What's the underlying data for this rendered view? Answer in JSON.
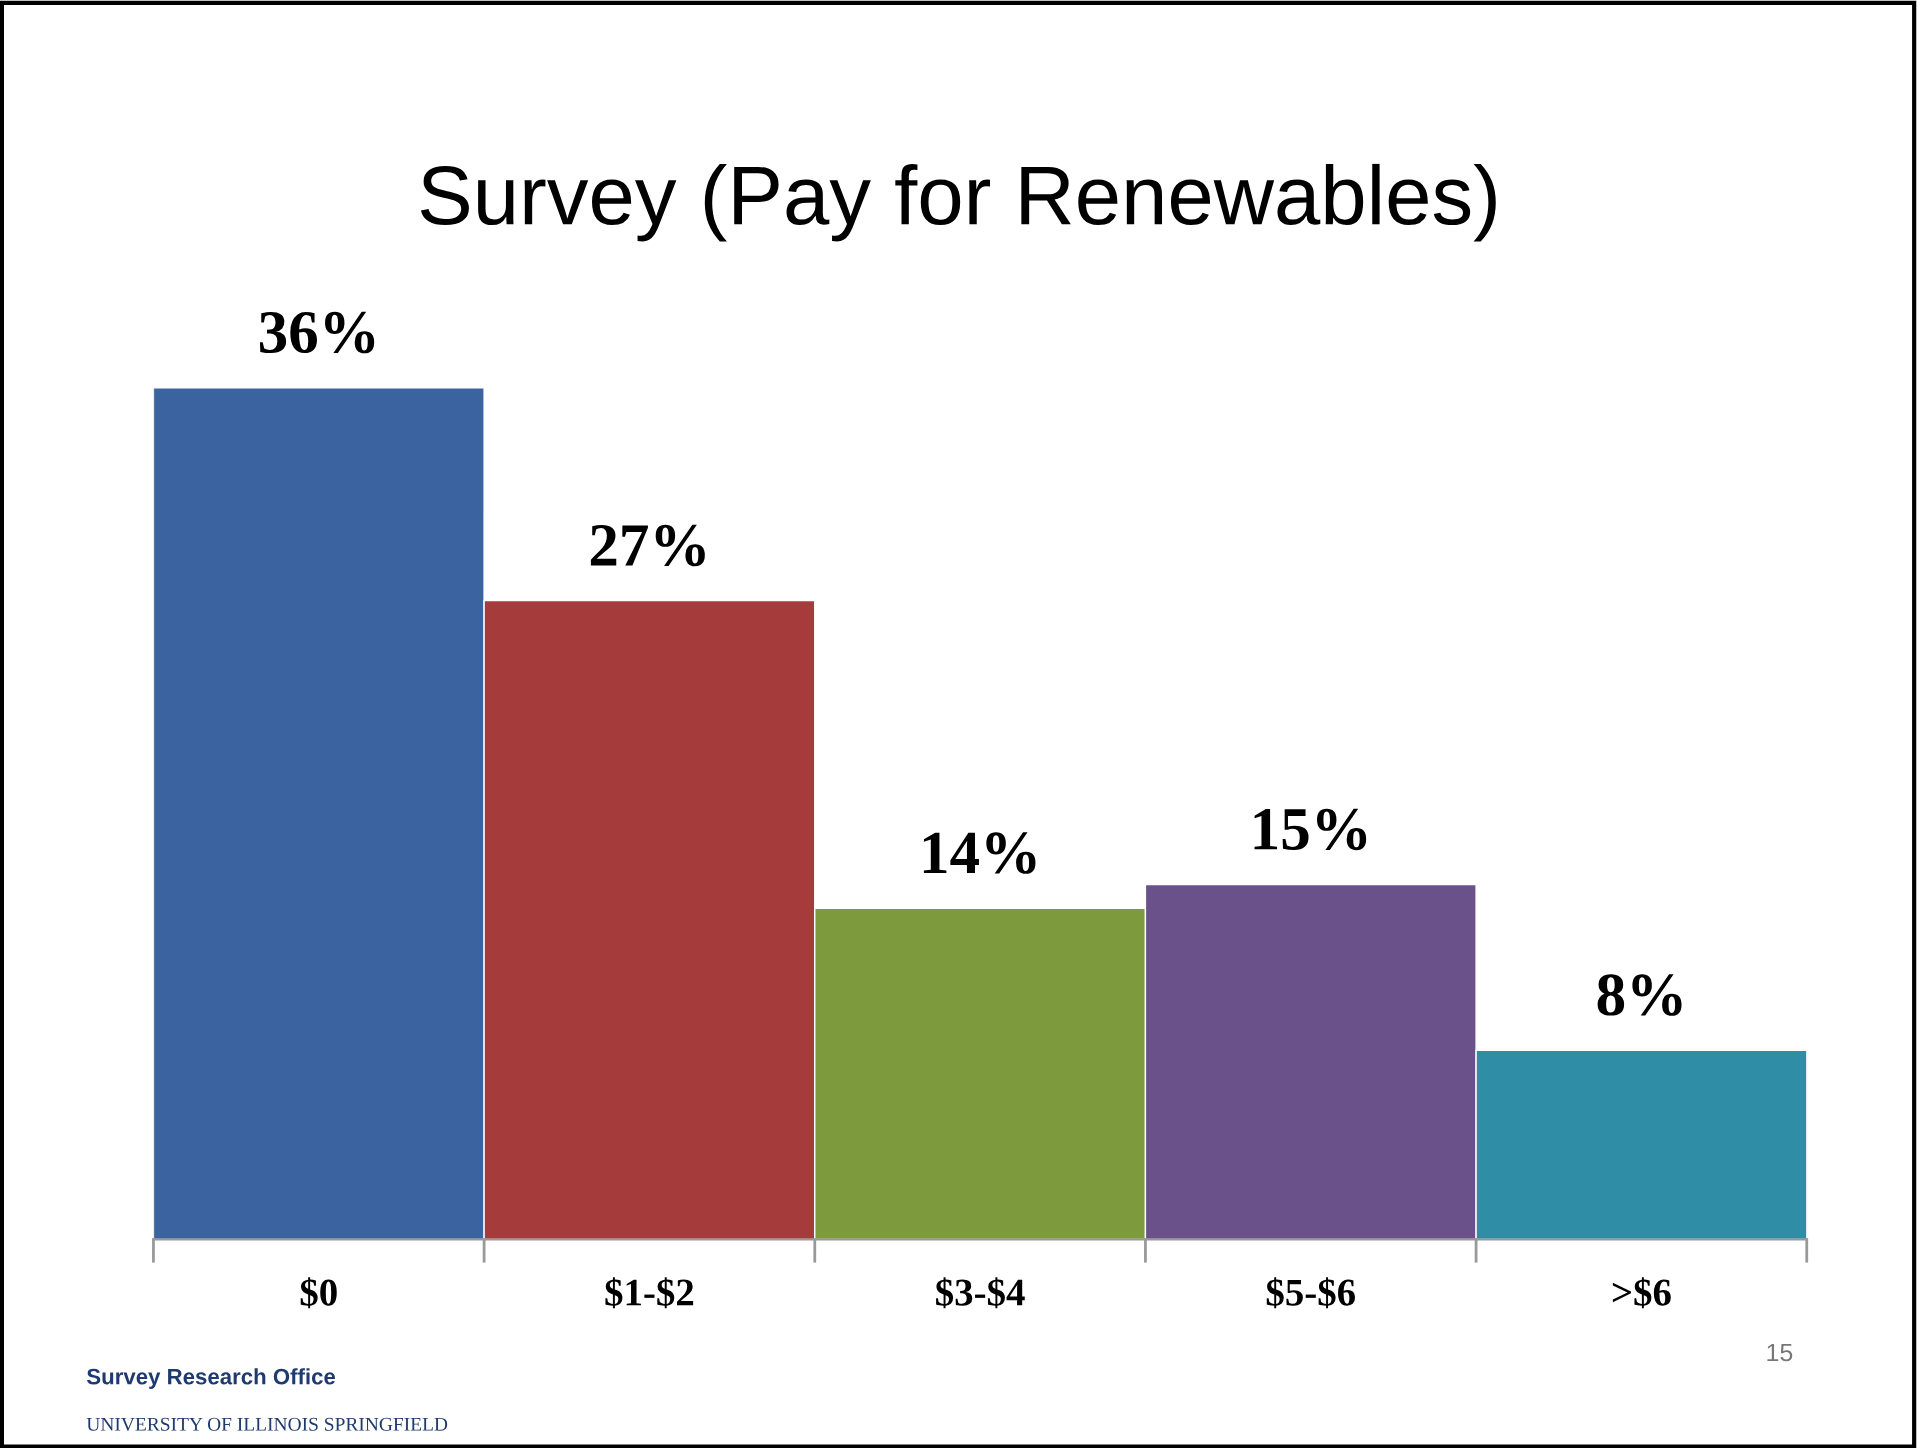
{
  "chart_data": {
    "type": "bar",
    "title": "Survey (Pay for Renewables)",
    "categories": [
      "$0",
      "$1-$2",
      "$3-$4",
      "$5-$6",
      ">$6"
    ],
    "values": [
      36,
      27,
      14,
      15,
      8
    ],
    "colors": [
      "#3b63a0",
      "#a53b3b",
      "#7d9b3c",
      "#6b5189",
      "#2f8ea5"
    ],
    "value_labels": [
      "36%",
      "27%",
      "14%",
      "15%",
      "8%"
    ],
    "annotations": [
      "Survey Research Office",
      "UNIVERSITY OF ILLINOIS SPRINGFIELD",
      "15"
    ],
    "grid": false,
    "legend": false
  }
}
